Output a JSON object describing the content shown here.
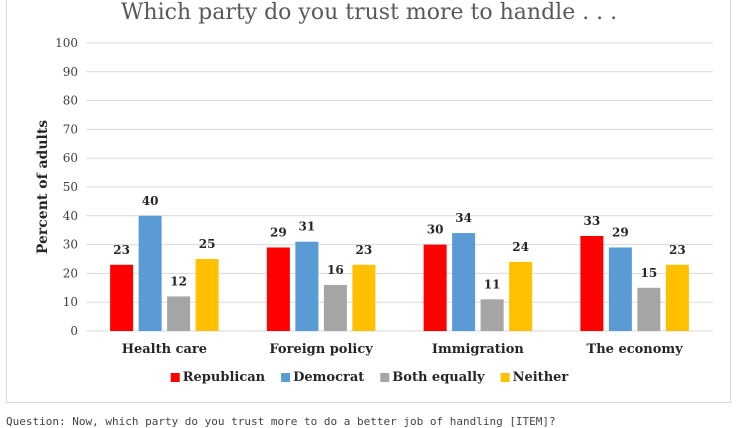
{
  "chart_data": {
    "type": "bar",
    "title": "Which party do you trust more to handle . . .",
    "ylabel": "Percent of adults",
    "xlabel": "",
    "ylim": [
      0,
      100
    ],
    "yticks": [
      0,
      10,
      20,
      30,
      40,
      50,
      60,
      70,
      80,
      90,
      100
    ],
    "grid": true,
    "legend_position": "bottom",
    "categories": [
      "Health care",
      "Foreign policy",
      "Immigration",
      "The economy"
    ],
    "series": [
      {
        "name": "Republican",
        "color": "#ff0000",
        "values": [
          23,
          29,
          30,
          33
        ]
      },
      {
        "name": "Democrat",
        "color": "#5b9bd5",
        "values": [
          40,
          31,
          34,
          29
        ]
      },
      {
        "name": "Both equally",
        "color": "#a5a5a5",
        "values": [
          12,
          16,
          11,
          15
        ]
      },
      {
        "name": "Neither",
        "color": "#ffc000",
        "values": [
          25,
          23,
          24,
          23
        ]
      }
    ]
  },
  "footnote": "Question: Now, which party do you trust more to do a better job of handling [ITEM]?"
}
